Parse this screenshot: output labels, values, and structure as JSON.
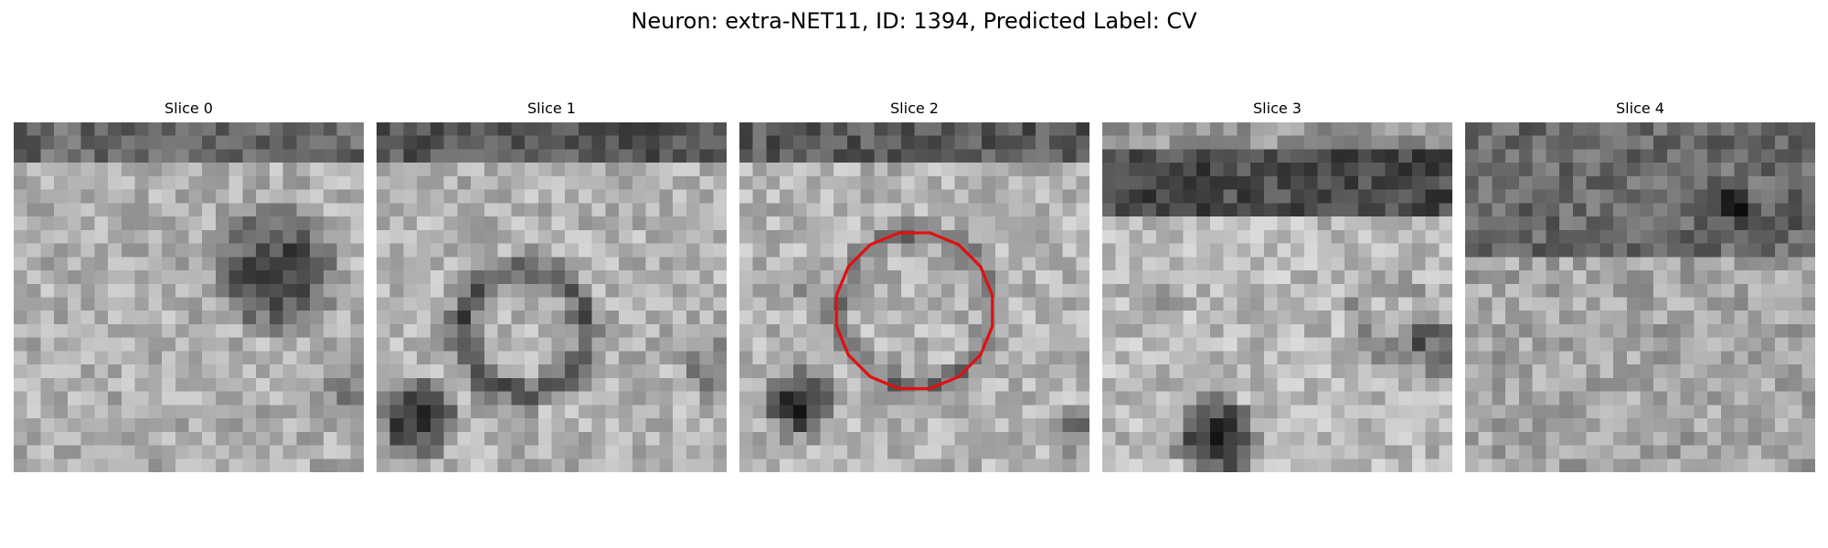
{
  "figure": {
    "title": "Neuron: extra-NET11, ID: 1394, Predicted Label: CV",
    "slices": [
      {
        "title": "Slice 0"
      },
      {
        "title": "Slice 1"
      },
      {
        "title": "Slice 2",
        "contour": true,
        "contour_color": "#e01010"
      },
      {
        "title": "Slice 3"
      },
      {
        "title": "Slice 4"
      }
    ]
  }
}
